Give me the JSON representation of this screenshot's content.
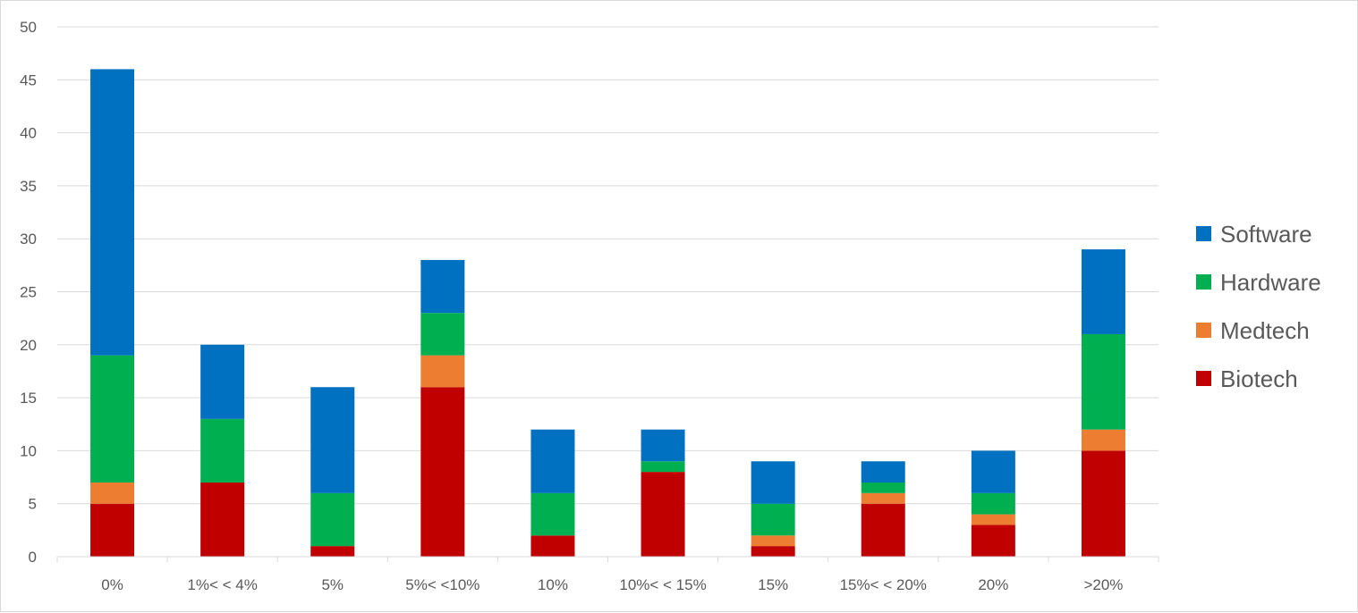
{
  "chart_data": {
    "type": "bar",
    "stacked": true,
    "categories": [
      "0%",
      "1%< < 4%",
      "5%",
      "5%< <10%",
      "10%",
      "10%< < 15%",
      "15%",
      "15%< < 20%",
      "20%",
      ">20%"
    ],
    "series": [
      {
        "name": "Biotech",
        "color": "#c00000",
        "values": [
          5,
          7,
          1,
          16,
          2,
          8,
          1,
          5,
          3,
          10
        ]
      },
      {
        "name": "Medtech",
        "color": "#ed7d31",
        "values": [
          2,
          0,
          0,
          3,
          0,
          0,
          1,
          1,
          1,
          2
        ]
      },
      {
        "name": "Hardware",
        "color": "#00b050",
        "values": [
          12,
          6,
          5,
          4,
          4,
          1,
          3,
          1,
          2,
          9
        ]
      },
      {
        "name": "Software",
        "color": "#0070c0",
        "values": [
          27,
          7,
          10,
          5,
          6,
          3,
          4,
          2,
          4,
          8
        ]
      }
    ],
    "legend_order": [
      "Software",
      "Hardware",
      "Medtech",
      "Biotech"
    ],
    "y_ticks": [
      0,
      5,
      10,
      15,
      20,
      25,
      30,
      35,
      40,
      45,
      50
    ],
    "ylim": [
      0,
      50
    ],
    "grid": true,
    "legend_position": "right"
  }
}
